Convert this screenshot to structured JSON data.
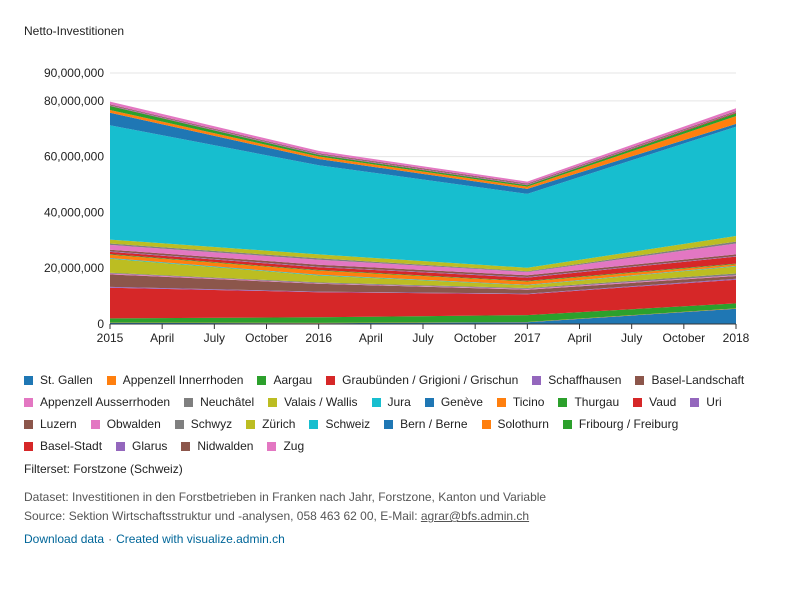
{
  "title": "Netto-Investitionen",
  "filterset": "Filterset: Forstzone (Schweiz)",
  "dataset_line": "Dataset: Investitionen in den Forstbetrieben in Franken nach Jahr, Forstzone, Kanton und Variable",
  "source_prefix": "Source: Sektion Wirtschaftsstruktur und -analysen, 058 463 62 00, E-Mail: ",
  "source_email": "agrar@bfs.admin.ch",
  "download_label": "Download data",
  "separator": "·",
  "created_label": "Created with visualize.admin.ch",
  "chart_data": {
    "type": "area",
    "stacked": true,
    "title": "Netto-Investitionen",
    "x": [
      "2015",
      "2016",
      "2017",
      "2018"
    ],
    "x_tick_labels": [
      "2015",
      "April",
      "July",
      "October",
      "2016",
      "April",
      "July",
      "October",
      "2017",
      "April",
      "July",
      "October",
      "2018"
    ],
    "y_tick_labels": [
      "0",
      "20,000,000",
      "40,000,000",
      "60,000,000",
      "80,000,000",
      "90,000,000"
    ],
    "y_ticks": [
      0,
      20000000,
      40000000,
      60000000,
      80000000,
      90000000
    ],
    "ylim": [
      0,
      90000000
    ],
    "legend_position": "bottom",
    "series": [
      {
        "name": "St. Gallen",
        "color": "#1f77b4",
        "values": [
          400000,
          300000,
          600000,
          5500000
        ]
      },
      {
        "name": "Appenzell Innerrhoden",
        "color": "#ff7f0e",
        "values": [
          100000,
          100000,
          100000,
          100000
        ]
      },
      {
        "name": "Aargau",
        "color": "#2ca02c",
        "values": [
          1500000,
          2000000,
          2500000,
          1800000
        ]
      },
      {
        "name": "Graubünden / Grigioni / Grischun",
        "color": "#d62728",
        "values": [
          11000000,
          9000000,
          7500000,
          8500000
        ]
      },
      {
        "name": "Schaffhausen",
        "color": "#9467bd",
        "values": [
          300000,
          200000,
          200000,
          300000
        ]
      },
      {
        "name": "Basel-Landschaft",
        "color": "#8c564b",
        "values": [
          4500000,
          2800000,
          1400000,
          1000000
        ]
      },
      {
        "name": "Appenzell Ausserrhoden",
        "color": "#e377c2",
        "values": [
          300000,
          200000,
          300000,
          300000
        ]
      },
      {
        "name": "Neuchâtel",
        "color": "#7f7f7f",
        "values": [
          300000,
          300000,
          300000,
          600000
        ]
      },
      {
        "name": "Valais / Wallis",
        "color": "#bcbd22",
        "values": [
          5000000,
          2500000,
          1000000,
          2500000
        ]
      },
      {
        "name": "Jura",
        "color": "#17becf",
        "values": [
          200000,
          200000,
          100000,
          200000
        ]
      },
      {
        "name": "Genève",
        "color": "#1f77b4",
        "values": [
          50000,
          50000,
          50000,
          50000
        ]
      },
      {
        "name": "Ticino",
        "color": "#ff7f0e",
        "values": [
          1200000,
          1500000,
          1200000,
          600000
        ]
      },
      {
        "name": "Thurgau",
        "color": "#2ca02c",
        "values": [
          200000,
          200000,
          200000,
          200000
        ]
      },
      {
        "name": "Vaud",
        "color": "#d62728",
        "values": [
          800000,
          1000000,
          1200000,
          2500000
        ]
      },
      {
        "name": "Uri",
        "color": "#9467bd",
        "values": [
          200000,
          200000,
          200000,
          200000
        ]
      },
      {
        "name": "Luzern",
        "color": "#8c564b",
        "values": [
          600000,
          700000,
          600000,
          600000
        ]
      },
      {
        "name": "Obwalden",
        "color": "#e377c2",
        "values": [
          1700000,
          1800000,
          1200000,
          3900000
        ]
      },
      {
        "name": "Schwyz",
        "color": "#7f7f7f",
        "values": [
          500000,
          500000,
          300000,
          700000
        ]
      },
      {
        "name": "Zürich",
        "color": "#bcbd22",
        "values": [
          1400000,
          1400000,
          1200000,
          2000000
        ]
      },
      {
        "name": "Schweiz",
        "color": "#17becf",
        "values": [
          41000000,
          32000000,
          26500000,
          39200000
        ]
      },
      {
        "name": "Bern / Berne",
        "color": "#1f77b4",
        "values": [
          4500000,
          2200000,
          1800000,
          1000000
        ]
      },
      {
        "name": "Solothurn",
        "color": "#ff7f0e",
        "values": [
          1000000,
          900000,
          800000,
          2800000
        ]
      },
      {
        "name": "Fribourg / Freiburg",
        "color": "#2ca02c",
        "values": [
          1400000,
          600000,
          500000,
          1000000
        ]
      },
      {
        "name": "Basel-Stadt",
        "color": "#d62728",
        "values": [
          100000,
          100000,
          100000,
          300000
        ]
      },
      {
        "name": "Glarus",
        "color": "#9467bd",
        "values": [
          200000,
          200000,
          200000,
          200000
        ]
      },
      {
        "name": "Nidwalden",
        "color": "#8c564b",
        "values": [
          300000,
          300000,
          300000,
          300000
        ]
      },
      {
        "name": "Zug",
        "color": "#e377c2",
        "values": [
          1000000,
          800000,
          700000,
          1000000
        ]
      }
    ]
  }
}
